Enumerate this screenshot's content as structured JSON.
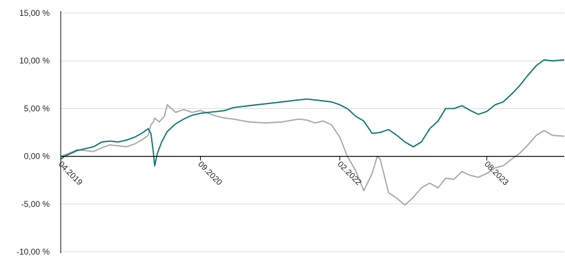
{
  "chart_data": {
    "type": "line",
    "title": "",
    "xlabel": "",
    "ylabel": "",
    "ylim": [
      -10,
      15
    ],
    "xlim": [
      "2019-04-01",
      "2024-05-15"
    ],
    "y_ticks": [
      {
        "value": 15,
        "label": "15,00 %"
      },
      {
        "value": 10,
        "label": "10,00 %"
      },
      {
        "value": 5,
        "label": "5,00 %"
      },
      {
        "value": 0,
        "label": "0,00 %"
      },
      {
        "value": -5,
        "label": "-5,00 %"
      },
      {
        "value": -10,
        "label": "-10,00 %"
      }
    ],
    "x_ticks": [
      {
        "value": "2019-04-01",
        "label": "04.2019"
      },
      {
        "value": "2020-09-01",
        "label": "09.2020"
      },
      {
        "value": "2022-02-01",
        "label": "02.2022"
      },
      {
        "value": "2023-08-01",
        "label": "08.2023"
      }
    ],
    "grid": true,
    "series": [
      {
        "color": "#0a7373",
        "points": [
          [
            "2019-04-01",
            -0.3
          ],
          [
            "2019-04-15",
            0.0
          ],
          [
            "2019-05-01",
            0.2
          ],
          [
            "2019-06-01",
            0.6
          ],
          [
            "2019-07-01",
            0.8
          ],
          [
            "2019-08-01",
            1.0
          ],
          [
            "2019-09-01",
            1.5
          ],
          [
            "2019-10-01",
            1.6
          ],
          [
            "2019-11-01",
            1.5
          ],
          [
            "2019-12-01",
            1.7
          ],
          [
            "2020-01-01",
            2.0
          ],
          [
            "2020-02-01",
            2.5
          ],
          [
            "2020-02-20",
            2.9
          ],
          [
            "2020-03-01",
            2.4
          ],
          [
            "2020-03-10",
            0.5
          ],
          [
            "2020-03-15",
            -1.0
          ],
          [
            "2020-03-25",
            0.3
          ],
          [
            "2020-04-10",
            1.5
          ],
          [
            "2020-05-01",
            2.6
          ],
          [
            "2020-06-01",
            3.4
          ],
          [
            "2020-07-01",
            3.9
          ],
          [
            "2020-08-01",
            4.3
          ],
          [
            "2020-09-01",
            4.5
          ],
          [
            "2020-10-01",
            4.6
          ],
          [
            "2020-11-01",
            4.7
          ],
          [
            "2020-12-01",
            4.8
          ],
          [
            "2021-01-01",
            5.1
          ],
          [
            "2021-03-01",
            5.3
          ],
          [
            "2021-05-01",
            5.5
          ],
          [
            "2021-07-01",
            5.7
          ],
          [
            "2021-09-01",
            5.9
          ],
          [
            "2021-10-01",
            6.0
          ],
          [
            "2021-11-01",
            5.9
          ],
          [
            "2021-12-01",
            5.8
          ],
          [
            "2022-01-01",
            5.7
          ],
          [
            "2022-02-01",
            5.4
          ],
          [
            "2022-03-01",
            5.0
          ],
          [
            "2022-04-01",
            4.2
          ],
          [
            "2022-05-01",
            3.7
          ],
          [
            "2022-06-01",
            2.4
          ],
          [
            "2022-07-01",
            2.5
          ],
          [
            "2022-08-01",
            2.8
          ],
          [
            "2022-09-01",
            2.2
          ],
          [
            "2022-10-01",
            1.5
          ],
          [
            "2022-11-01",
            1.0
          ],
          [
            "2022-12-01",
            1.5
          ],
          [
            "2023-01-01",
            2.9
          ],
          [
            "2023-02-01",
            3.7
          ],
          [
            "2023-03-01",
            5.0
          ],
          [
            "2023-04-01",
            5.0
          ],
          [
            "2023-05-01",
            5.3
          ],
          [
            "2023-06-01",
            4.8
          ],
          [
            "2023-07-01",
            4.4
          ],
          [
            "2023-08-01",
            4.7
          ],
          [
            "2023-09-01",
            5.4
          ],
          [
            "2023-10-01",
            5.7
          ],
          [
            "2023-11-01",
            6.5
          ],
          [
            "2023-12-01",
            7.4
          ],
          [
            "2024-01-01",
            8.5
          ],
          [
            "2024-02-01",
            9.5
          ],
          [
            "2024-03-01",
            10.1
          ],
          [
            "2024-04-01",
            10.0
          ],
          [
            "2024-05-15",
            10.1
          ]
        ]
      },
      {
        "color": "#a6a6a6",
        "points": [
          [
            "2019-04-01",
            0.0
          ],
          [
            "2019-05-01",
            0.3
          ],
          [
            "2019-06-01",
            0.7
          ],
          [
            "2019-07-01",
            0.6
          ],
          [
            "2019-08-01",
            0.5
          ],
          [
            "2019-09-01",
            0.9
          ],
          [
            "2019-10-01",
            1.2
          ],
          [
            "2019-11-01",
            1.1
          ],
          [
            "2019-12-01",
            1.0
          ],
          [
            "2020-01-01",
            1.3
          ],
          [
            "2020-02-01",
            1.8
          ],
          [
            "2020-02-20",
            2.2
          ],
          [
            "2020-03-01",
            3.3
          ],
          [
            "2020-03-10",
            3.6
          ],
          [
            "2020-03-15",
            4.0
          ],
          [
            "2020-04-01",
            3.6
          ],
          [
            "2020-04-20",
            4.2
          ],
          [
            "2020-05-01",
            5.4
          ],
          [
            "2020-06-01",
            4.6
          ],
          [
            "2020-07-01",
            4.9
          ],
          [
            "2020-08-01",
            4.6
          ],
          [
            "2020-09-01",
            4.8
          ],
          [
            "2020-10-01",
            4.5
          ],
          [
            "2020-11-01",
            4.2
          ],
          [
            "2020-12-01",
            4.0
          ],
          [
            "2021-01-01",
            3.9
          ],
          [
            "2021-03-01",
            3.6
          ],
          [
            "2021-05-01",
            3.5
          ],
          [
            "2021-07-01",
            3.6
          ],
          [
            "2021-09-01",
            3.9
          ],
          [
            "2021-10-01",
            3.8
          ],
          [
            "2021-11-01",
            3.5
          ],
          [
            "2021-12-01",
            3.7
          ],
          [
            "2022-01-01",
            3.3
          ],
          [
            "2022-02-01",
            2.0
          ],
          [
            "2022-03-01",
            0.0
          ],
          [
            "2022-04-01",
            -1.5
          ],
          [
            "2022-05-01",
            -3.6
          ],
          [
            "2022-06-01",
            -1.8
          ],
          [
            "2022-06-20",
            0.0
          ],
          [
            "2022-07-01",
            -0.3
          ],
          [
            "2022-08-01",
            -3.8
          ],
          [
            "2022-09-01",
            -4.4
          ],
          [
            "2022-10-01",
            -5.1
          ],
          [
            "2022-11-01",
            -4.3
          ],
          [
            "2022-12-01",
            -3.3
          ],
          [
            "2023-01-01",
            -2.8
          ],
          [
            "2023-02-01",
            -3.3
          ],
          [
            "2023-03-01",
            -2.3
          ],
          [
            "2023-04-01",
            -2.4
          ],
          [
            "2023-05-01",
            -1.6
          ],
          [
            "2023-06-01",
            -2.0
          ],
          [
            "2023-07-01",
            -2.2
          ],
          [
            "2023-08-01",
            -1.8
          ],
          [
            "2023-09-01",
            -1.2
          ],
          [
            "2023-10-01",
            -1.0
          ],
          [
            "2023-11-01",
            -0.3
          ],
          [
            "2023-12-01",
            0.3
          ],
          [
            "2024-01-01",
            1.2
          ],
          [
            "2024-02-01",
            2.2
          ],
          [
            "2024-03-01",
            2.7
          ],
          [
            "2024-04-01",
            2.2
          ],
          [
            "2024-05-15",
            2.1
          ]
        ]
      }
    ]
  }
}
